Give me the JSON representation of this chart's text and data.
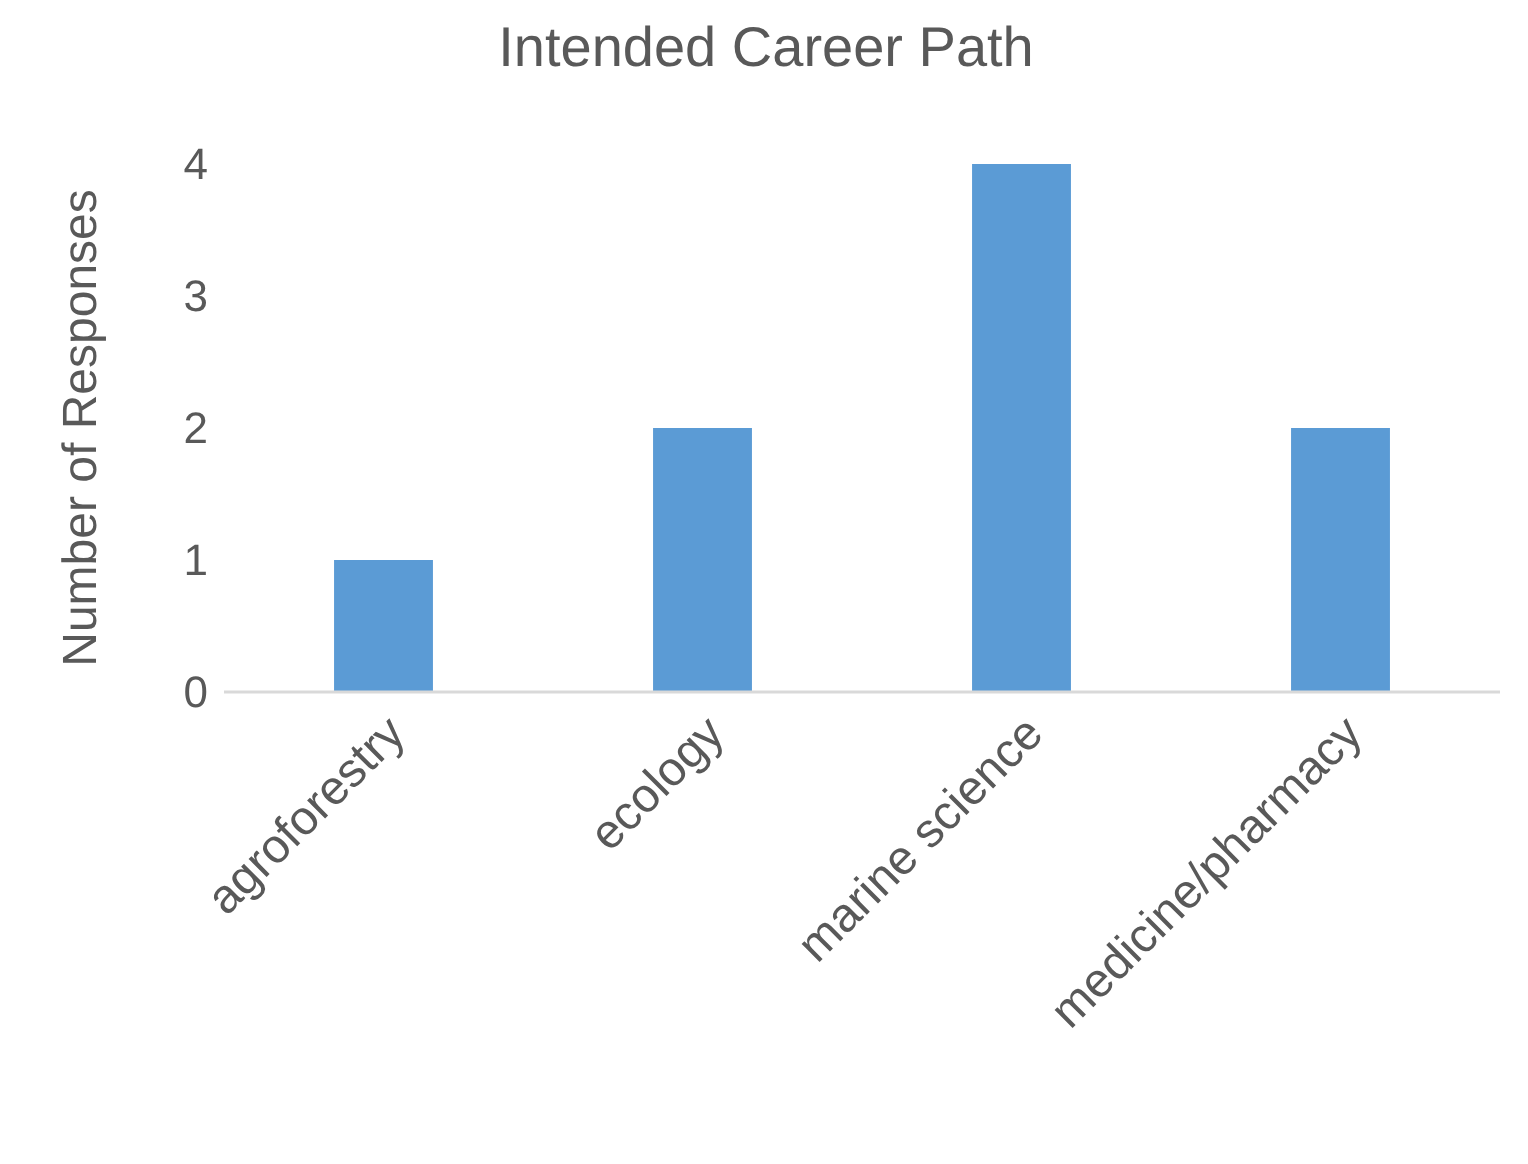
{
  "chart_data": {
    "type": "bar",
    "title": "Intended Career Path",
    "ylabel": "Number of Responses",
    "categories": [
      "agroforestry",
      "ecology",
      "marine science",
      "medicine/pharmacy"
    ],
    "values": [
      1,
      2,
      4,
      2
    ],
    "color": "#5b9bd5",
    "ylim": [
      0,
      4
    ],
    "yticks": [
      0,
      1,
      2,
      3,
      4
    ],
    "grid": false
  }
}
